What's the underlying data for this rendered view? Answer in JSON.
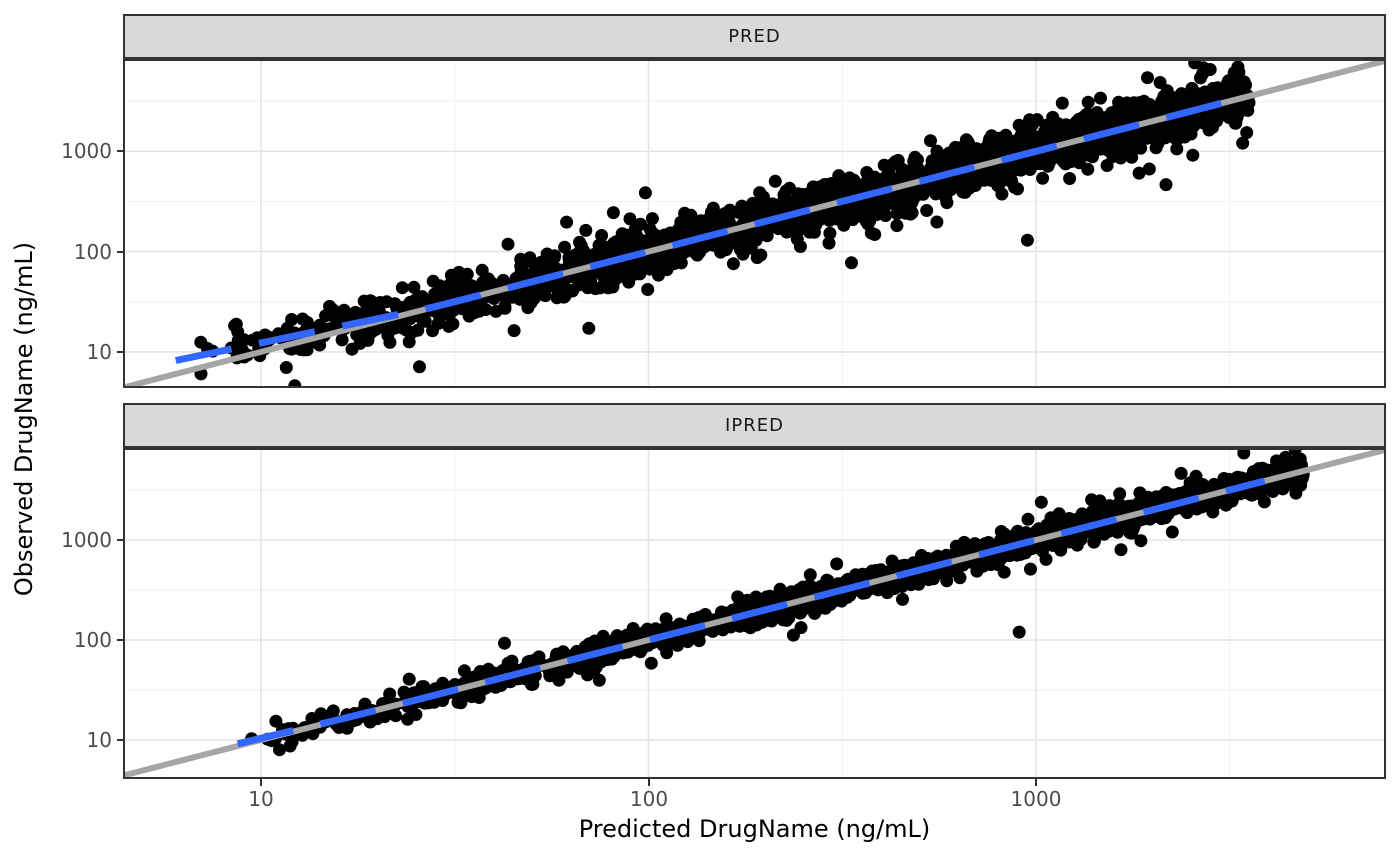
{
  "chart_data": {
    "type": "scatter",
    "title": "",
    "xlabel": "Predicted DrugName (ng/mL)",
    "ylabel": "Observed DrugName (ng/mL)",
    "x_scale": "log10",
    "y_scale": "log10",
    "grid": "major-and-minor",
    "legend_position": "none",
    "x_range_log10": [
      0.644,
      3.903
    ],
    "x_ticks": [
      10,
      100,
      1000
    ],
    "x_tick_labels": [
      "10",
      "100",
      "1000"
    ],
    "x_minor_ticks": [
      31.62,
      316.2,
      3162
    ],
    "y_ticks": [
      10,
      100,
      1000
    ],
    "y_tick_labels": [
      "10",
      "100",
      "1000"
    ],
    "y_minor_ticks": [
      31.62,
      316.2,
      3162
    ],
    "facets": [
      {
        "label": "PRED",
        "y_range_log10": [
          0.64,
          3.92
        ],
        "scatter_generation": {
          "n_points": 2200,
          "x_log10_min": 0.78,
          "x_log10_span": 2.77,
          "x_density_power": 0.55,
          "residual_sd_log10": 0.11,
          "residual_tail_sd_log10": 0.23,
          "tail_fraction": 0.12,
          "low_x_bias_threshold_log10": 1.45,
          "low_x_bias_slope": 0.2,
          "seed": 42
        },
        "outliers": [
          {
            "x": 950,
            "y": 130
          }
        ],
        "smooth_x_log10": [
          0.78,
          3.49
        ]
      },
      {
        "label": "IPRED",
        "y_range_log10": [
          0.61,
          3.92
        ],
        "scatter_generation": {
          "n_points": 2200,
          "x_log10_min": 0.93,
          "x_log10_span": 2.76,
          "x_density_power": 0.55,
          "residual_sd_log10": 0.055,
          "residual_tail_sd_log10": 0.115,
          "tail_fraction": 0.1,
          "low_x_bias_threshold_log10": 1.25,
          "low_x_bias_slope": 0.07,
          "seed": 1337
        },
        "outliers": [
          {
            "x": 905,
            "y": 120
          }
        ],
        "smooth_x_log10": [
          0.94,
          3.63
        ]
      }
    ],
    "reference_lines": [
      {
        "name": "identity-line",
        "style": "solid",
        "color": "#A6A6A6",
        "width": 6
      },
      {
        "name": "smooth-line",
        "style": "dashed",
        "color": "#3366FF",
        "width": 7,
        "dash": [
          57,
          28
        ]
      }
    ],
    "point_style": {
      "color": "#000000",
      "radius": 6.5
    }
  },
  "styles": {
    "background": "#FFFFFF",
    "strip_fill": "#D9D9D9",
    "strip_border": "#333333",
    "panel_border": "#333333",
    "grid_major": "#E4E4E4",
    "grid_minor": "#F1F1F1",
    "tick_color": "#333333",
    "tick_label_color": "#4D4D4D",
    "axis_title_color": "#000000"
  }
}
